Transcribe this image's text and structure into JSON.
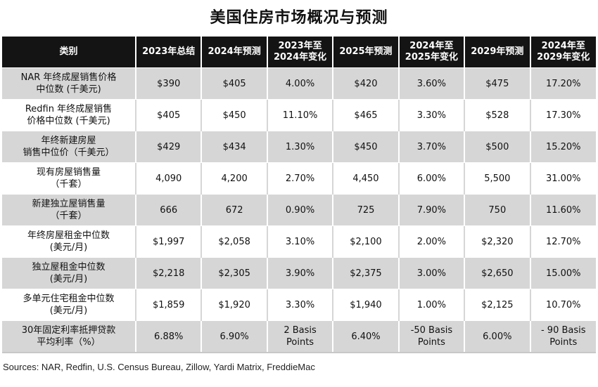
{
  "title": "美国住房市场概况与预测",
  "headers": [
    "类别",
    "2023年总结",
    "2024年预测",
    "2023年至\n2024年变化",
    "2025年预测",
    "2024年至\n2025年变化",
    "2029年预测",
    "2024年至\n2029年变化"
  ],
  "rows": [
    [
      "NAR 年终成屋销售价格\n中位数 (千美元)",
      "$390",
      "$405",
      "4.00%",
      "$420",
      "3.60%",
      "$475",
      "17.20%"
    ],
    [
      "Redfin 年终成屋销售\n价格中位数 (千美元)",
      "$405",
      "$450",
      "11.10%",
      "$465",
      "3.30%",
      "$528",
      "17.30%"
    ],
    [
      "年终新建房屋\n销售中位价（千美元）",
      "$429",
      "$434",
      "1.30%",
      "$450",
      "3.70%",
      "$500",
      "15.20%"
    ],
    [
      "现有房屋销售量\n（千套）",
      "4,090",
      "4,200",
      "2.70%",
      "4,450",
      "6.00%",
      "5,500",
      "31.00%"
    ],
    [
      "新建独立屋销售量\n（千套）",
      "666",
      "672",
      "0.90%",
      "725",
      "7.90%",
      "750",
      "11.60%"
    ],
    [
      "年终房屋租金中位数\n(美元/月)",
      "$1,997",
      "$2,058",
      "3.10%",
      "$2,100",
      "2.00%",
      "$2,320",
      "12.70%"
    ],
    [
      "独立屋租金中位数\n(美元/月)",
      "$2,218",
      "$2,305",
      "3.90%",
      "$2,375",
      "3.00%",
      "$2,650",
      "15.00%"
    ],
    [
      "多单元住宅租金中位数\n(美元/月)",
      "$1,859",
      "$1,920",
      "3.30%",
      "$1,940",
      "1.00%",
      "$2,125",
      "10.70%"
    ],
    [
      "30年固定利率抵押贷款\n平均利率（%）",
      "6.88%",
      "6.90%",
      "2 Basis\nPoints",
      "6.40%",
      "-50 Basis\nPoints",
      "6.00%",
      "- 90 Basis\nPoints"
    ]
  ],
  "sources": "Sources: NAR, Redfin, U.S. Census Bureau, Zillow, Yardi Matrix, FreddieMac"
}
